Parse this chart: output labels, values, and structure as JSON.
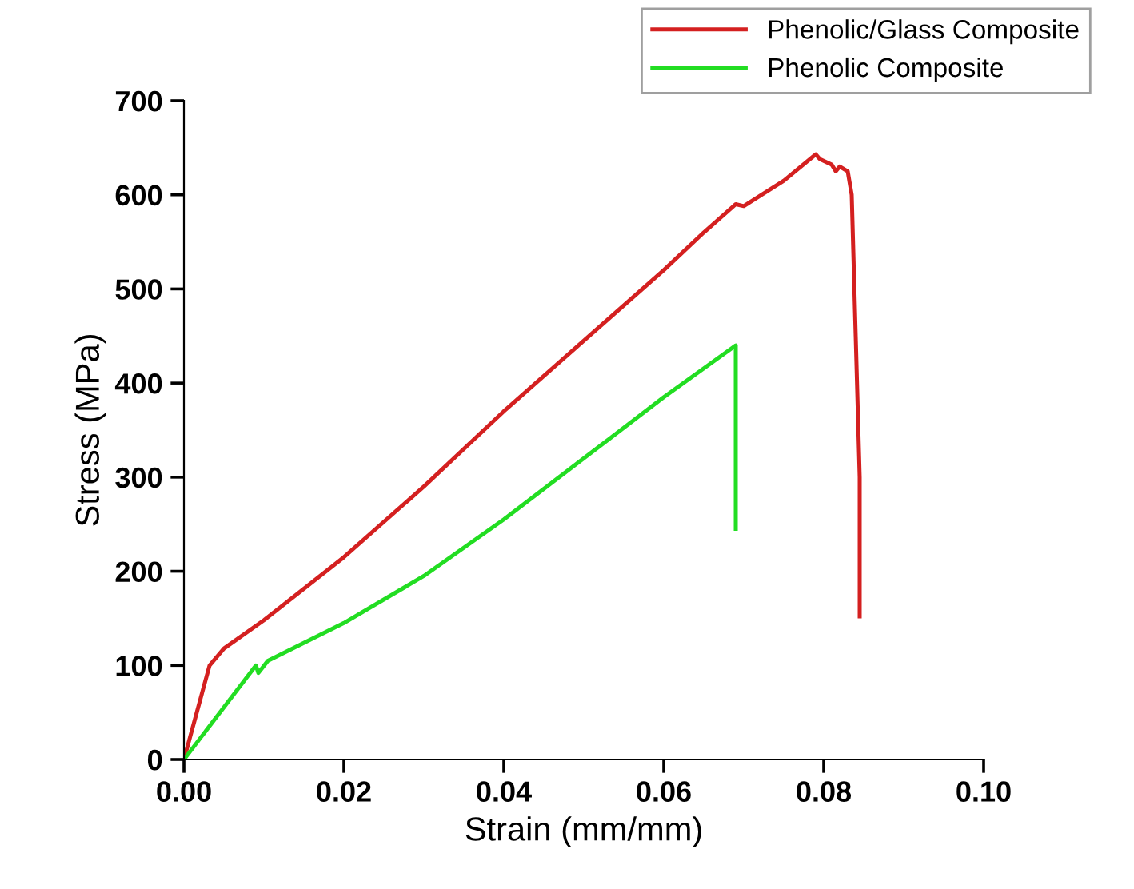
{
  "chart_data": {
    "type": "line",
    "xlabel": "Strain (mm/mm)",
    "ylabel": "Stress (MPa)",
    "xlim": [
      0,
      0.1
    ],
    "ylim": [
      0,
      700
    ],
    "xticks": [
      {
        "value": 0,
        "label": "0.00"
      },
      {
        "value": 0.02,
        "label": "0.02"
      },
      {
        "value": 0.04,
        "label": "0.04"
      },
      {
        "value": 0.06,
        "label": "0.06"
      },
      {
        "value": 0.08,
        "label": "0.08"
      },
      {
        "value": 0.1,
        "label": "0.10"
      }
    ],
    "yticks": [
      0,
      100,
      200,
      300,
      400,
      500,
      600,
      700
    ],
    "grid": false,
    "legend": "top right",
    "line_style": "solid",
    "marker": "none",
    "series": [
      {
        "name": "Phenolic/Glass Composite",
        "color": "#d42020",
        "x": [
          0,
          0.0032,
          0.005,
          0.01,
          0.02,
          0.03,
          0.04,
          0.05,
          0.06,
          0.065,
          0.069,
          0.07,
          0.075,
          0.079,
          0.0795,
          0.081,
          0.0815,
          0.082,
          0.083,
          0.0835,
          0.084,
          0.0845,
          0.0845
        ],
        "values": [
          0,
          100,
          118,
          148,
          215,
          290,
          370,
          445,
          520,
          560,
          590,
          588,
          615,
          643,
          638,
          632,
          625,
          630,
          625,
          600,
          450,
          300,
          152
        ]
      },
      {
        "name": "Phenolic Composite",
        "color": "#22dd22",
        "x": [
          0,
          0.009,
          0.0093,
          0.0105,
          0.02,
          0.03,
          0.04,
          0.05,
          0.06,
          0.069,
          0.069
        ],
        "values": [
          0,
          100,
          92,
          105,
          145,
          195,
          255,
          320,
          385,
          440,
          245
        ]
      }
    ]
  }
}
